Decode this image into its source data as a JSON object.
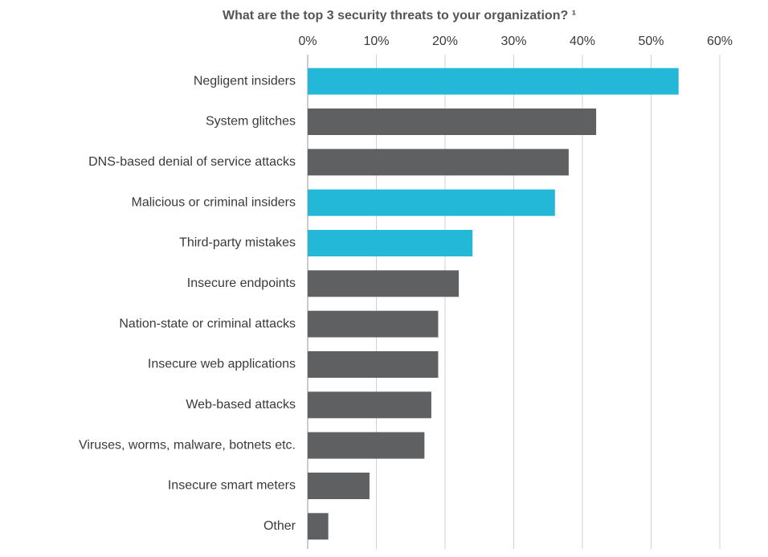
{
  "chart_data": {
    "type": "hbar",
    "title": "What are the top 3 security threats to your organization? ¹",
    "categories": [
      "Negligent insiders",
      "System glitches",
      "DNS-based denial of service attacks",
      "Malicious or criminal insiders",
      "Third-party mistakes",
      "Insecure endpoints",
      "Nation-state or criminal attacks",
      "Insecure web applications",
      "Web-based attacks",
      "Viruses, worms, malware, botnets etc.",
      "Insecure smart meters",
      "Other"
    ],
    "values": [
      54,
      42,
      38,
      36,
      24,
      22,
      19,
      19,
      18,
      17,
      9,
      3
    ],
    "colors": [
      "#24b8d8",
      "#5f6062",
      "#5f6062",
      "#24b8d8",
      "#24b8d8",
      "#5f6062",
      "#5f6062",
      "#5f6062",
      "#5f6062",
      "#5f6062",
      "#5f6062",
      "#5f6062"
    ],
    "xlim": [
      0,
      60
    ],
    "xticks": [
      {
        "value": 0,
        "label": "0%"
      },
      {
        "value": 10,
        "label": "10%"
      },
      {
        "value": 20,
        "label": "20%"
      },
      {
        "value": 30,
        "label": "30%"
      },
      {
        "value": 40,
        "label": "40%"
      },
      {
        "value": 50,
        "label": "50%"
      },
      {
        "value": 60,
        "label": "60%"
      }
    ],
    "grid": true
  }
}
